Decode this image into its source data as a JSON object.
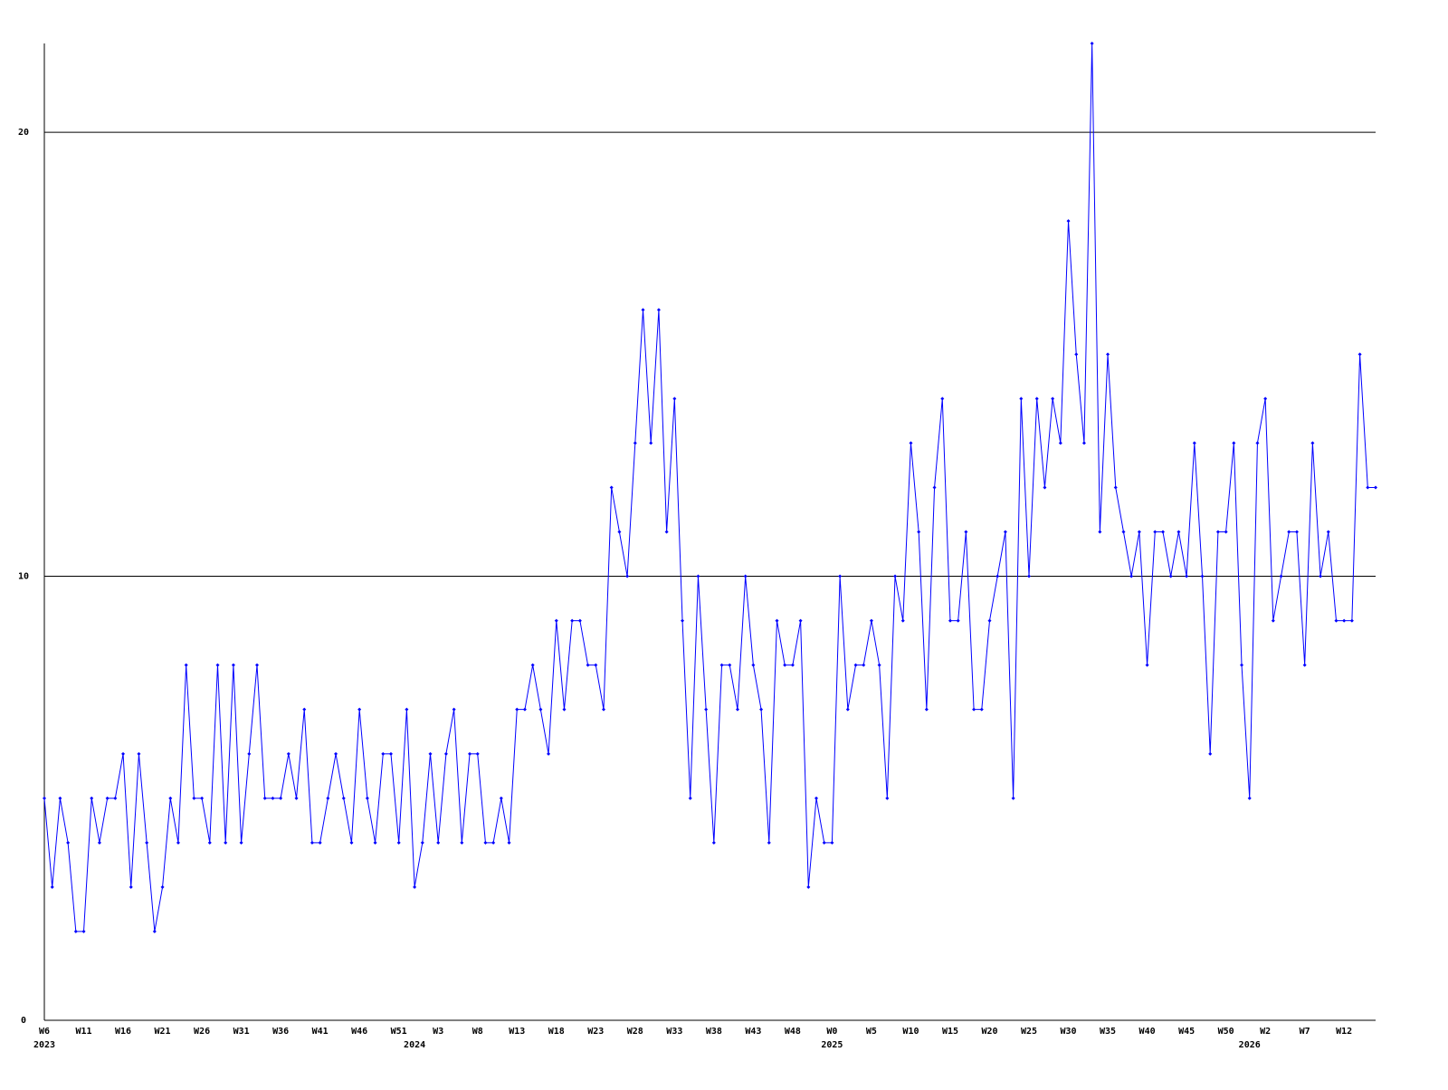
{
  "chart_data": {
    "type": "line",
    "categories": [
      "W6",
      null,
      null,
      null,
      null,
      "W11",
      null,
      null,
      null,
      null,
      "W16",
      null,
      null,
      null,
      null,
      "W21",
      null,
      null,
      null,
      null,
      "W26",
      null,
      null,
      null,
      null,
      "W31",
      null,
      null,
      null,
      null,
      "W36",
      null,
      null,
      null,
      null,
      "W41",
      null,
      null,
      null,
      null,
      "W46",
      null,
      null,
      null,
      null,
      "W51",
      null,
      null,
      null,
      null,
      "W3",
      null,
      null,
      null,
      null,
      "W8",
      null,
      null,
      null,
      null,
      "W13",
      null,
      null,
      null,
      null,
      "W18",
      null,
      null,
      null,
      null,
      "W23",
      null,
      null,
      null,
      null,
      "W28",
      null,
      null,
      null,
      null,
      "W33",
      null,
      null,
      null,
      null,
      "W38",
      null,
      null,
      null,
      null,
      "W43",
      null,
      null,
      null,
      null,
      "W48",
      null,
      null,
      null,
      null,
      "W0",
      null,
      null,
      null,
      null,
      "W5",
      null,
      null,
      null,
      null,
      "W10",
      null,
      null,
      null,
      null,
      "W15",
      null,
      null,
      null,
      null,
      "W20",
      null,
      null,
      null,
      null,
      "W25",
      null,
      null,
      null,
      null,
      "W30",
      null,
      null,
      null,
      null,
      "W35",
      null,
      null,
      null,
      null,
      "W40",
      null,
      null,
      null,
      null,
      "W45",
      null,
      null,
      null,
      null,
      "W50",
      null,
      null,
      null,
      null,
      "W2",
      null,
      null,
      null,
      null,
      "W7",
      null,
      null,
      null,
      null,
      "W12",
      null,
      null,
      null,
      null
    ],
    "year_labels": [
      "2023",
      null,
      null,
      null,
      null,
      null,
      null,
      null,
      null,
      null,
      null,
      null,
      null,
      null,
      null,
      null,
      null,
      null,
      null,
      null,
      null,
      null,
      null,
      null,
      null,
      null,
      null,
      null,
      null,
      null,
      null,
      null,
      null,
      null,
      null,
      null,
      null,
      null,
      null,
      null,
      null,
      null,
      null,
      null,
      null,
      null,
      null,
      "2024",
      null,
      null,
      null,
      null,
      null,
      null,
      null,
      null,
      null,
      null,
      null,
      null,
      null,
      null,
      null,
      null,
      null,
      null,
      null,
      null,
      null,
      null,
      null,
      null,
      null,
      null,
      null,
      null,
      null,
      null,
      null,
      null,
      null,
      null,
      null,
      null,
      null,
      null,
      null,
      null,
      null,
      null,
      null,
      null,
      null,
      null,
      null,
      null,
      null,
      null,
      null,
      null,
      "2025",
      null,
      null,
      null,
      null,
      null,
      null,
      null,
      null,
      null,
      null,
      null,
      null,
      null,
      null,
      null,
      null,
      null,
      null,
      null,
      null,
      null,
      null,
      null,
      null,
      null,
      null,
      null,
      null,
      null,
      null,
      null,
      null,
      null,
      null,
      null,
      null,
      null,
      null,
      null,
      null,
      null,
      null,
      null,
      null,
      null,
      null,
      null,
      null,
      null,
      null,
      null,
      null,
      "2026",
      null,
      null,
      null,
      null,
      null,
      null,
      null,
      null,
      null,
      null,
      null,
      null,
      null,
      null,
      null,
      null
    ],
    "values": [
      5,
      3,
      5,
      4,
      2,
      2,
      5,
      4,
      5,
      5,
      6,
      3,
      6,
      4,
      2,
      3,
      5,
      4,
      8,
      5,
      5,
      4,
      8,
      4,
      8,
      4,
      6,
      8,
      5,
      5,
      5,
      6,
      5,
      7,
      4,
      4,
      5,
      6,
      5,
      4,
      7,
      5,
      4,
      6,
      6,
      4,
      7,
      3,
      4,
      6,
      4,
      6,
      7,
      4,
      6,
      6,
      4,
      4,
      5,
      4,
      7,
      7,
      8,
      7,
      6,
      9,
      7,
      9,
      9,
      8,
      8,
      7,
      12,
      11,
      10,
      13,
      16,
      13,
      16,
      11,
      14,
      9,
      5,
      10,
      7,
      4,
      8,
      8,
      7,
      10,
      8,
      7,
      4,
      9,
      8,
      8,
      9,
      3,
      5,
      4,
      4,
      10,
      7,
      8,
      8,
      9,
      8,
      5,
      10,
      9,
      13,
      11,
      7,
      12,
      14,
      9,
      9,
      11,
      7,
      7,
      9,
      10,
      11,
      5,
      14,
      10,
      14,
      12,
      14,
      13,
      18,
      15,
      13,
      22,
      11,
      15,
      12,
      11,
      10,
      11,
      8,
      11,
      11,
      10,
      11,
      10,
      13,
      10,
      6,
      11,
      11,
      13,
      8,
      5,
      13,
      14,
      9,
      10,
      11,
      11,
      8,
      13,
      10,
      11,
      9,
      9,
      9,
      15,
      12,
      12
    ],
    "color": "#0000ff",
    "ylim": [
      0,
      22
    ],
    "yticks": [
      0,
      10,
      20
    ],
    "grid": true
  }
}
